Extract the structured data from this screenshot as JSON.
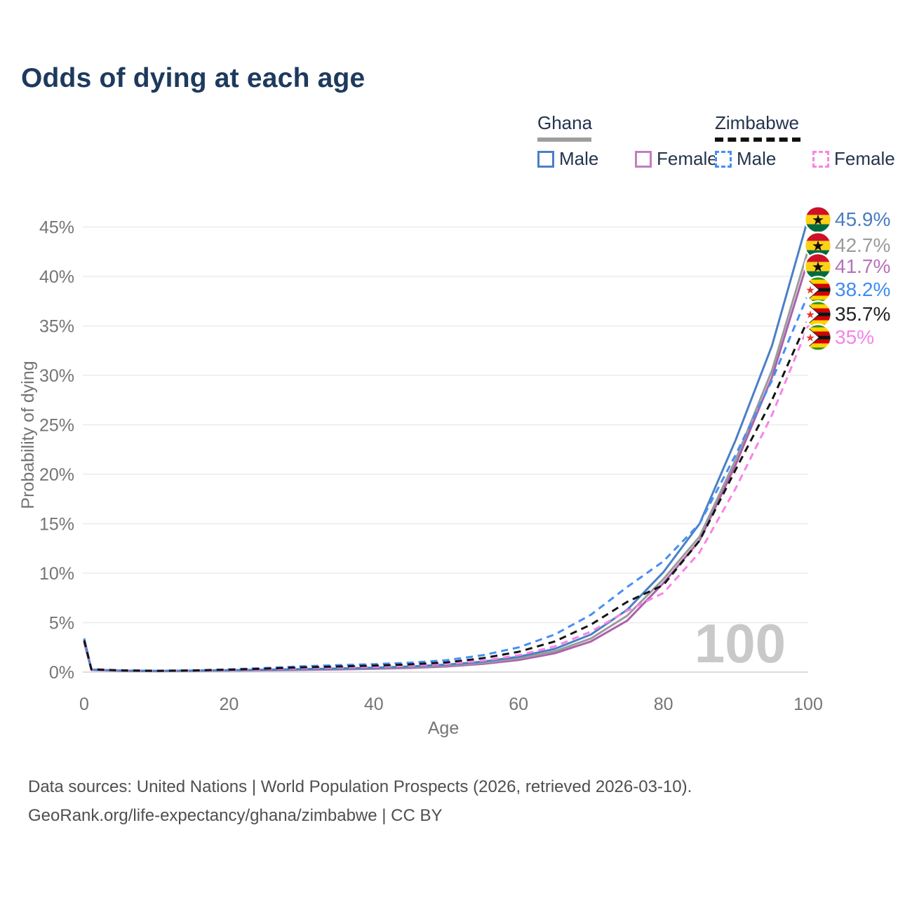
{
  "title": "Odds of dying at each age",
  "legend": {
    "groups": [
      {
        "name": "Ghana",
        "line_style": "solid",
        "underline_color": "#9e9e9e",
        "items": [
          {
            "label": "Male",
            "color": "#4a80c4",
            "dashed": false
          },
          {
            "label": "Female",
            "color": "#c07fc0",
            "dashed": false
          }
        ]
      },
      {
        "name": "Zimbabwe",
        "line_style": "dashed",
        "underline_color": "#111111",
        "items": [
          {
            "label": "Male",
            "color": "#458ef5",
            "dashed": true
          },
          {
            "label": "Female",
            "color": "#f983e6",
            "dashed": true
          }
        ]
      }
    ]
  },
  "watermark": "100",
  "chart_data": {
    "type": "line",
    "title": "Odds of dying at each age",
    "xlabel": "Age",
    "ylabel": "Probability of dying",
    "xlim": [
      0,
      100
    ],
    "ylim": [
      0,
      46
    ],
    "grid": "horizontal",
    "x_tick_values": [
      0,
      20,
      40,
      60,
      80,
      100
    ],
    "x_tick_labels": [
      "0",
      "20",
      "40",
      "60",
      "80",
      "100"
    ],
    "y_tick_values": [
      0,
      5,
      10,
      15,
      20,
      25,
      30,
      35,
      40,
      45
    ],
    "y_tick_labels": [
      "0%",
      "5%",
      "10%",
      "15%",
      "20%",
      "25%",
      "30%",
      "35%",
      "40%",
      "45%"
    ],
    "legend_position": "top-right",
    "ages": [
      0,
      1,
      5,
      10,
      15,
      20,
      25,
      30,
      35,
      40,
      45,
      50,
      55,
      60,
      65,
      70,
      75,
      80,
      85,
      90,
      95,
      100
    ],
    "series": [
      {
        "name": "Ghana Male",
        "country": "Ghana",
        "sex": "male",
        "color": "#4a80c4",
        "dashed": false,
        "flag": "ghana-flag-icon",
        "end_label": "45.9%",
        "label_color": "#4a7cc4",
        "values": [
          3.4,
          0.25,
          0.15,
          0.12,
          0.15,
          0.2,
          0.25,
          0.3,
          0.36,
          0.45,
          0.57,
          0.75,
          1.05,
          1.55,
          2.35,
          3.8,
          6.3,
          10.1,
          15.0,
          23.5,
          33.0,
          45.9
        ]
      },
      {
        "name": "Ghana (all)",
        "country": "Ghana",
        "sex": "all",
        "color": "#9b9b9b",
        "dashed": false,
        "flag": "ghana-flag-icon",
        "end_label": "42.7%",
        "label_color": "#9b9b9b",
        "values": [
          3.2,
          0.23,
          0.14,
          0.11,
          0.13,
          0.17,
          0.21,
          0.26,
          0.31,
          0.39,
          0.49,
          0.65,
          0.92,
          1.38,
          2.1,
          3.4,
          5.7,
          9.4,
          13.7,
          21.5,
          30.5,
          42.7
        ]
      },
      {
        "name": "Ghana Female",
        "country": "Ghana",
        "sex": "female",
        "color": "#ad60ad",
        "dashed": false,
        "flag": "ghana-flag-icon",
        "end_label": "41.7%",
        "label_color": "#b671b8",
        "values": [
          3.0,
          0.21,
          0.13,
          0.1,
          0.12,
          0.15,
          0.18,
          0.22,
          0.27,
          0.33,
          0.42,
          0.57,
          0.82,
          1.22,
          1.9,
          3.1,
          5.2,
          9.0,
          13.3,
          21.0,
          29.8,
          41.7
        ]
      },
      {
        "name": "Zimbabwe Male",
        "country": "Zimbabwe",
        "sex": "male",
        "color": "#458ef5",
        "dashed": true,
        "flag": "zimbabwe-flag-icon",
        "end_label": "38.2%",
        "label_color": "#3f8bf2",
        "values": [
          3.3,
          0.3,
          0.18,
          0.14,
          0.18,
          0.28,
          0.42,
          0.58,
          0.7,
          0.8,
          0.95,
          1.2,
          1.7,
          2.5,
          3.8,
          5.8,
          8.6,
          11.2,
          15.0,
          22.0,
          29.5,
          38.2
        ]
      },
      {
        "name": "Zimbabwe (all)",
        "country": "Zimbabwe",
        "sex": "all",
        "color": "#141414",
        "dashed": true,
        "flag": "zimbabwe-flag-icon",
        "end_label": "35.7%",
        "label_color": "#222222",
        "values": [
          3.2,
          0.28,
          0.17,
          0.13,
          0.16,
          0.24,
          0.35,
          0.48,
          0.57,
          0.65,
          0.78,
          0.98,
          1.4,
          2.05,
          3.1,
          4.8,
          7.1,
          8.8,
          13.3,
          20.5,
          27.5,
          35.7
        ]
      },
      {
        "name": "Zimbabwe Female",
        "country": "Zimbabwe",
        "sex": "female",
        "color": "#f983e6",
        "dashed": true,
        "flag": "zimbabwe-flag-icon",
        "end_label": "35%",
        "label_color": "#f583e8",
        "values": [
          3.1,
          0.26,
          0.16,
          0.12,
          0.15,
          0.2,
          0.29,
          0.39,
          0.46,
          0.53,
          0.64,
          0.82,
          1.15,
          1.7,
          2.6,
          4.1,
          6.2,
          8.0,
          12.1,
          18.6,
          26.0,
          35.0
        ]
      }
    ]
  },
  "footer": {
    "line1": "Data sources: United Nations | World Population Prospects (2026, retrieved 2026-03-10).",
    "line2": "GeoRank.org/life-expectancy/ghana/zimbabwe | CC BY"
  }
}
